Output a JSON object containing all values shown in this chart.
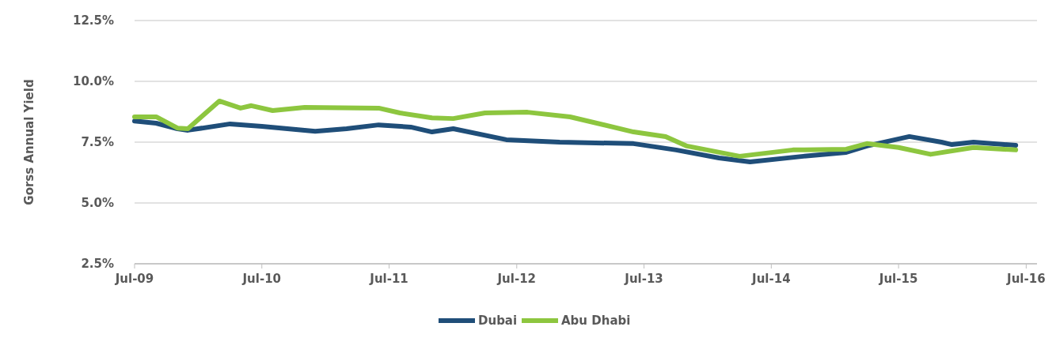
{
  "chart_data": {
    "type": "line",
    "ylabel": "Gorss Annual Yield",
    "xlim": [
      "2009-07",
      "2016-08"
    ],
    "ylim": [
      2.5,
      12.5
    ],
    "yticks": [
      {
        "value": 2.5,
        "label": "2.5%"
      },
      {
        "value": 5,
        "label": "5.0%"
      },
      {
        "value": 7.5,
        "label": "7.5%"
      },
      {
        "value": 10,
        "label": "10.0%"
      },
      {
        "value": 12.5,
        "label": "12.5%"
      }
    ],
    "xticks": [
      {
        "value": "2009-07",
        "label": "Jul-09"
      },
      {
        "value": "2010-07",
        "label": "Jul-10"
      },
      {
        "value": "2011-07",
        "label": "Jul-11"
      },
      {
        "value": "2012-07",
        "label": "Jul-12"
      },
      {
        "value": "2013-07",
        "label": "Jul-13"
      },
      {
        "value": "2014-07",
        "label": "Jul-14"
      },
      {
        "value": "2015-07",
        "label": "Jul-15"
      },
      {
        "value": "2016-07",
        "label": "Jul-16"
      }
    ],
    "grid": "y",
    "legend": "bottom",
    "marker": "none",
    "line_style": "solid",
    "series": [
      {
        "name": "Dubai",
        "color": "#1f4e79",
        "x": [
          "2009-07",
          "2009-09",
          "2009-11",
          "2009-12",
          "2010-04",
          "2010-07",
          "2010-12",
          "2011-03",
          "2011-06",
          "2011-09",
          "2011-11",
          "2012-01",
          "2012-06",
          "2012-11",
          "2013-06",
          "2013-10",
          "2014-02",
          "2014-05",
          "2014-10",
          "2015-02",
          "2015-04",
          "2015-08",
          "2015-11",
          "2015-12",
          "2016-02",
          "2016-06"
        ],
        "values": [
          8.37,
          8.28,
          8.05,
          7.99,
          8.25,
          8.15,
          7.95,
          8.05,
          8.21,
          8.12,
          7.92,
          8.05,
          7.6,
          7.5,
          7.44,
          7.18,
          6.85,
          6.69,
          6.92,
          7.08,
          7.34,
          7.73,
          7.5,
          7.4,
          7.5,
          7.37
        ]
      },
      {
        "name": "Abu Dhabi",
        "color": "#8dc63f",
        "x": [
          "2009-07",
          "2009-09",
          "2009-11",
          "2009-12",
          "2010-03",
          "2010-05",
          "2010-06",
          "2010-08",
          "2010-11",
          "2011-06",
          "2011-08",
          "2011-11",
          "2012-01",
          "2012-04",
          "2012-08",
          "2012-12",
          "2013-06",
          "2013-09",
          "2013-11",
          "2014-04",
          "2014-09",
          "2015-02",
          "2015-04",
          "2015-07",
          "2015-10",
          "2016-02",
          "2016-06"
        ],
        "values": [
          8.54,
          8.54,
          8.08,
          8.05,
          9.19,
          8.9,
          9.0,
          8.8,
          8.93,
          8.9,
          8.7,
          8.5,
          8.47,
          8.7,
          8.73,
          8.54,
          7.92,
          7.73,
          7.34,
          6.92,
          7.18,
          7.21,
          7.44,
          7.28,
          7.0,
          7.28,
          7.18
        ]
      }
    ]
  }
}
